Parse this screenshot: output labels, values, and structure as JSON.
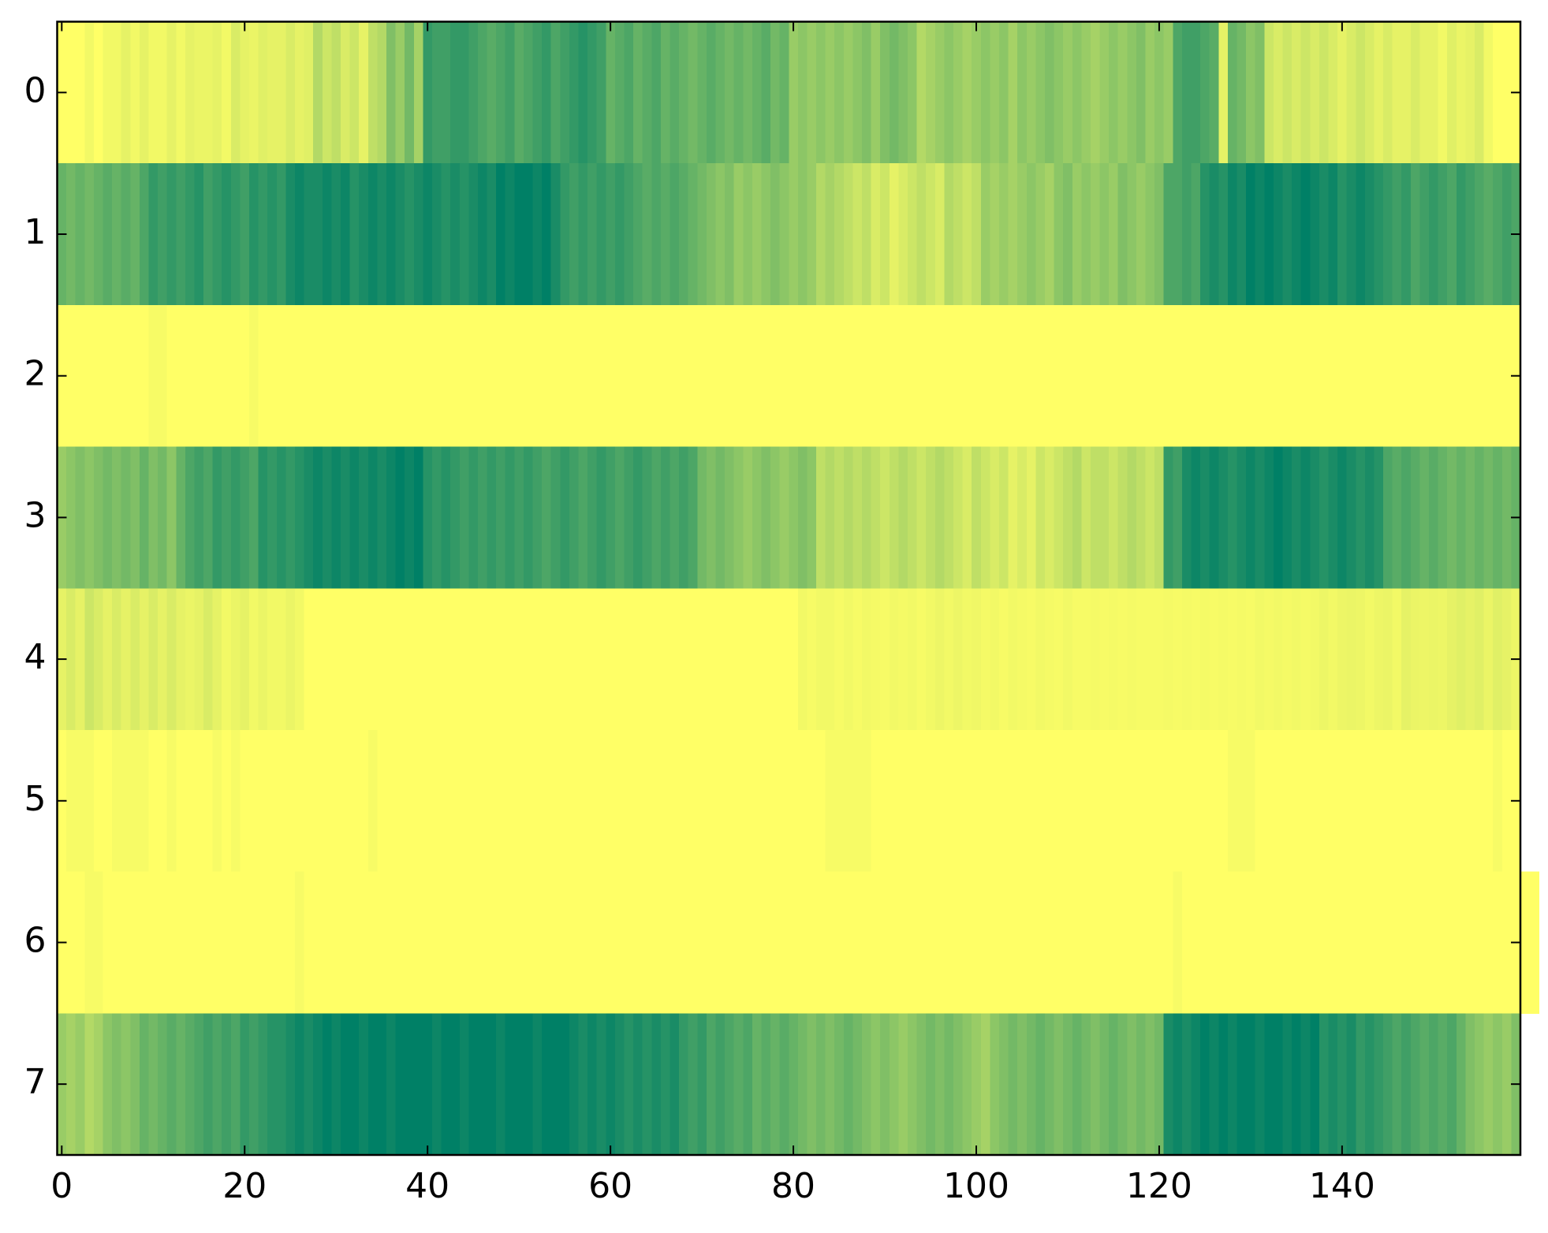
{
  "chart_data": {
    "type": "heatmap",
    "colormap": "summer",
    "clim": [
      0,
      1
    ],
    "xlim": [
      -0.5,
      159.5
    ],
    "ylim": [
      7.5,
      -0.5
    ],
    "xticks": [
      0,
      20,
      40,
      60,
      80,
      100,
      120,
      140
    ],
    "yticks": [
      0,
      1,
      2,
      3,
      4,
      5,
      6,
      7
    ],
    "z": [
      [
        1.0,
        1.0,
        1.0,
        0.95,
        1.0,
        0.95,
        0.95,
        0.9,
        0.95,
        0.9,
        0.95,
        0.95,
        0.9,
        0.95,
        0.9,
        0.92,
        0.92,
        0.9,
        0.95,
        0.85,
        0.9,
        0.92,
        0.88,
        0.9,
        0.9,
        0.85,
        0.9,
        0.88,
        0.7,
        0.8,
        0.75,
        0.85,
        0.8,
        0.9,
        0.75,
        0.7,
        0.5,
        0.6,
        0.45,
        0.65,
        0.2,
        0.25,
        0.25,
        0.2,
        0.2,
        0.25,
        0.3,
        0.35,
        0.3,
        0.25,
        0.35,
        0.3,
        0.25,
        0.2,
        0.3,
        0.25,
        0.2,
        0.15,
        0.2,
        0.25,
        0.4,
        0.35,
        0.3,
        0.4,
        0.35,
        0.3,
        0.4,
        0.35,
        0.4,
        0.45,
        0.4,
        0.35,
        0.4,
        0.45,
        0.4,
        0.45,
        0.4,
        0.35,
        0.45,
        0.4,
        0.6,
        0.55,
        0.6,
        0.55,
        0.6,
        0.55,
        0.6,
        0.55,
        0.5,
        0.6,
        0.5,
        0.45,
        0.5,
        0.55,
        0.7,
        0.65,
        0.6,
        0.55,
        0.6,
        0.65,
        0.6,
        0.55,
        0.6,
        0.55,
        0.65,
        0.55,
        0.6,
        0.55,
        0.5,
        0.55,
        0.6,
        0.55,
        0.6,
        0.65,
        0.6,
        0.55,
        0.6,
        0.55,
        0.5,
        0.6,
        0.55,
        0.6,
        0.3,
        0.25,
        0.25,
        0.3,
        0.35,
        0.9,
        0.4,
        0.45,
        0.55,
        0.5,
        0.8,
        0.85,
        0.8,
        0.85,
        0.8,
        0.85,
        0.8,
        0.85,
        0.9,
        0.85,
        0.8,
        0.85,
        0.9,
        0.85,
        0.9,
        0.9,
        0.85,
        0.9,
        0.9,
        0.95,
        0.88,
        0.92,
        0.9,
        0.85,
        0.95,
        1.0,
        1.0,
        1.0
      ],
      [
        0.4,
        0.45,
        0.4,
        0.45,
        0.4,
        0.35,
        0.4,
        0.35,
        0.4,
        0.3,
        0.2,
        0.25,
        0.2,
        0.25,
        0.2,
        0.15,
        0.25,
        0.2,
        0.15,
        0.2,
        0.25,
        0.15,
        0.2,
        0.15,
        0.2,
        0.1,
        0.05,
        0.1,
        0.1,
        0.05,
        0.1,
        0.05,
        0.15,
        0.1,
        0.05,
        0.1,
        0.05,
        0.1,
        0.15,
        0.1,
        0.05,
        0.1,
        0.15,
        0.1,
        0.15,
        0.1,
        0.05,
        0.1,
        0.0,
        0.05,
        0.0,
        0.0,
        0.05,
        0.0,
        0.1,
        0.2,
        0.25,
        0.2,
        0.25,
        0.2,
        0.25,
        0.2,
        0.25,
        0.3,
        0.35,
        0.3,
        0.35,
        0.3,
        0.35,
        0.4,
        0.45,
        0.5,
        0.55,
        0.5,
        0.6,
        0.55,
        0.6,
        0.55,
        0.5,
        0.55,
        0.6,
        0.55,
        0.6,
        0.7,
        0.65,
        0.7,
        0.75,
        0.8,
        0.75,
        0.85,
        0.8,
        0.9,
        0.85,
        0.8,
        0.75,
        0.8,
        0.85,
        0.7,
        0.75,
        0.8,
        0.75,
        0.6,
        0.65,
        0.6,
        0.65,
        0.6,
        0.55,
        0.6,
        0.65,
        0.55,
        0.5,
        0.6,
        0.55,
        0.6,
        0.55,
        0.6,
        0.5,
        0.55,
        0.6,
        0.55,
        0.5,
        0.3,
        0.3,
        0.25,
        0.3,
        0.15,
        0.1,
        0.15,
        0.05,
        0.1,
        0.0,
        0.05,
        0.0,
        0.05,
        0.1,
        0.05,
        0.0,
        0.05,
        0.1,
        0.05,
        0.15,
        0.1,
        0.05,
        0.1,
        0.15,
        0.2,
        0.25,
        0.2,
        0.3,
        0.25,
        0.2,
        0.25,
        0.3,
        0.2,
        0.25,
        0.3,
        0.35,
        0.3,
        0.25,
        0.3
      ],
      [
        1.0,
        1.0,
        1.0,
        1.0,
        1.0,
        1.0,
        1.0,
        1.0,
        1.0,
        1.0,
        0.97,
        0.97,
        1.0,
        1.0,
        1.0,
        1.0,
        1.0,
        1.0,
        1.0,
        1.0,
        1.0,
        0.97,
        1.0,
        1.0,
        1.0,
        1.0,
        1.0,
        1.0,
        1.0,
        1.0,
        1.0,
        1.0,
        1.0,
        1.0,
        1.0,
        1.0,
        1.0,
        1.0,
        1.0,
        1.0,
        1.0,
        1.0,
        1.0,
        1.0,
        1.0,
        1.0,
        1.0,
        1.0,
        1.0,
        1.0,
        1.0,
        1.0,
        1.0,
        1.0,
        1.0,
        1.0,
        1.0,
        1.0,
        1.0,
        1.0,
        1.0,
        1.0,
        1.0,
        1.0,
        1.0,
        1.0,
        1.0,
        1.0,
        1.0,
        1.0,
        1.0,
        1.0,
        1.0,
        1.0,
        1.0,
        1.0,
        1.0,
        1.0,
        1.0,
        1.0,
        1.0,
        1.0,
        1.0,
        1.0,
        1.0,
        1.0,
        1.0,
        1.0,
        1.0,
        1.0,
        1.0,
        1.0,
        1.0,
        1.0,
        1.0,
        1.0,
        1.0,
        1.0,
        1.0,
        1.0,
        1.0,
        1.0,
        1.0,
        1.0,
        1.0,
        1.0,
        1.0,
        1.0,
        1.0,
        1.0,
        1.0,
        1.0,
        1.0,
        1.0,
        1.0,
        1.0,
        1.0,
        1.0,
        1.0,
        1.0,
        1.0,
        1.0,
        1.0,
        1.0,
        1.0,
        1.0,
        1.0,
        1.0,
        1.0,
        1.0,
        1.0,
        1.0,
        1.0,
        1.0,
        1.0,
        1.0,
        1.0,
        1.0,
        1.0,
        1.0,
        1.0,
        1.0,
        1.0,
        1.0,
        1.0,
        1.0,
        1.0,
        1.0,
        1.0,
        1.0,
        1.0,
        1.0,
        1.0,
        1.0,
        1.0,
        1.0,
        1.0,
        1.0,
        1.0,
        1.0
      ],
      [
        0.6,
        0.55,
        0.5,
        0.55,
        0.5,
        0.45,
        0.5,
        0.45,
        0.5,
        0.4,
        0.5,
        0.45,
        0.55,
        0.4,
        0.3,
        0.25,
        0.3,
        0.2,
        0.25,
        0.2,
        0.25,
        0.3,
        0.15,
        0.2,
        0.15,
        0.2,
        0.15,
        0.1,
        0.05,
        0.1,
        0.05,
        0.1,
        0.05,
        0.1,
        0.05,
        0.1,
        0.05,
        0.0,
        0.05,
        0.0,
        0.15,
        0.2,
        0.15,
        0.2,
        0.25,
        0.2,
        0.25,
        0.2,
        0.25,
        0.2,
        0.25,
        0.2,
        0.25,
        0.3,
        0.25,
        0.2,
        0.25,
        0.3,
        0.25,
        0.2,
        0.25,
        0.3,
        0.25,
        0.2,
        0.25,
        0.3,
        0.25,
        0.3,
        0.25,
        0.3,
        0.45,
        0.5,
        0.45,
        0.5,
        0.55,
        0.6,
        0.55,
        0.5,
        0.55,
        0.6,
        0.55,
        0.5,
        0.55,
        0.75,
        0.7,
        0.75,
        0.7,
        0.75,
        0.7,
        0.75,
        0.8,
        0.75,
        0.7,
        0.75,
        0.8,
        0.75,
        0.7,
        0.75,
        0.8,
        0.85,
        0.75,
        0.8,
        0.85,
        0.8,
        0.9,
        0.85,
        0.9,
        0.8,
        0.85,
        0.8,
        0.75,
        0.7,
        0.8,
        0.75,
        0.75,
        0.8,
        0.75,
        0.7,
        0.75,
        0.8,
        0.75,
        0.2,
        0.25,
        0.1,
        0.05,
        0.1,
        0.05,
        0.1,
        0.15,
        0.1,
        0.05,
        0.1,
        0.05,
        0.0,
        0.05,
        0.1,
        0.05,
        0.1,
        0.15,
        0.1,
        0.05,
        0.1,
        0.15,
        0.1,
        0.15,
        0.3,
        0.35,
        0.3,
        0.35,
        0.4,
        0.35,
        0.4,
        0.45,
        0.4,
        0.45,
        0.4,
        0.45,
        0.4,
        0.45,
        0.4
      ],
      [
        0.9,
        0.85,
        0.9,
        0.8,
        0.85,
        0.9,
        0.85,
        0.9,
        0.85,
        0.9,
        0.85,
        0.9,
        0.85,
        0.9,
        0.92,
        0.9,
        0.85,
        0.9,
        0.95,
        0.92,
        0.9,
        0.95,
        0.92,
        0.95,
        0.95,
        0.92,
        0.95,
        1.0,
        1.0,
        1.0,
        1.0,
        1.0,
        1.0,
        1.0,
        1.0,
        1.0,
        1.0,
        1.0,
        1.0,
        1.0,
        1.0,
        1.0,
        1.0,
        1.0,
        1.0,
        1.0,
        1.0,
        1.0,
        1.0,
        1.0,
        1.0,
        1.0,
        1.0,
        1.0,
        1.0,
        1.0,
        1.0,
        1.0,
        1.0,
        1.0,
        1.0,
        1.0,
        1.0,
        1.0,
        1.0,
        1.0,
        1.0,
        1.0,
        1.0,
        1.0,
        1.0,
        1.0,
        1.0,
        1.0,
        1.0,
        1.0,
        1.0,
        1.0,
        1.0,
        1.0,
        1.0,
        0.95,
        0.97,
        0.95,
        0.95,
        0.97,
        0.95,
        0.97,
        0.95,
        0.96,
        0.97,
        0.95,
        0.96,
        0.95,
        0.97,
        0.95,
        0.93,
        0.95,
        0.93,
        0.95,
        0.94,
        0.96,
        0.95,
        0.97,
        0.95,
        0.96,
        0.97,
        0.95,
        0.96,
        0.97,
        0.95,
        0.97,
        0.97,
        0.96,
        0.97,
        0.96,
        0.97,
        0.96,
        0.97,
        0.97,
        0.97,
        0.96,
        0.97,
        0.96,
        0.97,
        0.96,
        0.97,
        0.96,
        0.97,
        0.96,
        0.97,
        0.95,
        0.96,
        0.95,
        0.96,
        0.95,
        0.96,
        0.95,
        0.93,
        0.95,
        0.93,
        0.92,
        0.93,
        0.95,
        0.93,
        0.92,
        0.95,
        0.9,
        0.92,
        0.93,
        0.92,
        0.93,
        0.9,
        0.88,
        0.9,
        0.88,
        0.92,
        0.88,
        0.9,
        0.93
      ],
      [
        1.0,
        0.97,
        0.97,
        0.97,
        1.0,
        1.0,
        0.97,
        0.97,
        0.97,
        0.97,
        1.0,
        1.0,
        0.97,
        1.0,
        1.0,
        1.0,
        1.0,
        0.97,
        1.0,
        0.97,
        1.0,
        1.0,
        1.0,
        1.0,
        1.0,
        1.0,
        1.0,
        1.0,
        1.0,
        1.0,
        1.0,
        1.0,
        1.0,
        1.0,
        0.97,
        1.0,
        1.0,
        1.0,
        1.0,
        1.0,
        1.0,
        1.0,
        1.0,
        1.0,
        1.0,
        1.0,
        1.0,
        1.0,
        1.0,
        1.0,
        1.0,
        1.0,
        1.0,
        1.0,
        1.0,
        1.0,
        1.0,
        1.0,
        1.0,
        1.0,
        1.0,
        1.0,
        1.0,
        1.0,
        1.0,
        1.0,
        1.0,
        1.0,
        1.0,
        1.0,
        1.0,
        1.0,
        1.0,
        1.0,
        1.0,
        1.0,
        1.0,
        1.0,
        1.0,
        1.0,
        1.0,
        1.0,
        1.0,
        1.0,
        0.97,
        0.97,
        0.97,
        0.97,
        0.97,
        1.0,
        1.0,
        1.0,
        1.0,
        1.0,
        1.0,
        1.0,
        1.0,
        1.0,
        1.0,
        1.0,
        1.0,
        1.0,
        1.0,
        1.0,
        1.0,
        1.0,
        1.0,
        1.0,
        1.0,
        1.0,
        1.0,
        1.0,
        1.0,
        1.0,
        1.0,
        1.0,
        1.0,
        1.0,
        1.0,
        1.0,
        1.0,
        1.0,
        1.0,
        1.0,
        1.0,
        1.0,
        1.0,
        1.0,
        0.97,
        0.97,
        0.97,
        1.0,
        1.0,
        1.0,
        1.0,
        1.0,
        1.0,
        1.0,
        1.0,
        1.0,
        1.0,
        1.0,
        1.0,
        1.0,
        1.0,
        1.0,
        1.0,
        1.0,
        1.0,
        1.0,
        1.0,
        1.0,
        1.0,
        1.0,
        1.0,
        1.0,
        1.0,
        0.97,
        1.0,
        1.0
      ],
      [
        1.0,
        1.0,
        1.0,
        0.97,
        0.97,
        1.0,
        1.0,
        1.0,
        1.0,
        1.0,
        1.0,
        1.0,
        1.0,
        1.0,
        1.0,
        1.0,
        1.0,
        1.0,
        1.0,
        1.0,
        1.0,
        1.0,
        1.0,
        1.0,
        1.0,
        1.0,
        0.97,
        1.0,
        1.0,
        1.0,
        1.0,
        1.0,
        1.0,
        1.0,
        1.0,
        1.0,
        1.0,
        1.0,
        1.0,
        1.0,
        1.0,
        1.0,
        1.0,
        1.0,
        1.0,
        1.0,
        1.0,
        1.0,
        1.0,
        1.0,
        1.0,
        1.0,
        1.0,
        1.0,
        1.0,
        1.0,
        1.0,
        1.0,
        1.0,
        1.0,
        1.0,
        1.0,
        1.0,
        1.0,
        1.0,
        1.0,
        1.0,
        1.0,
        1.0,
        1.0,
        1.0,
        1.0,
        1.0,
        1.0,
        1.0,
        1.0,
        1.0,
        1.0,
        1.0,
        1.0,
        1.0,
        1.0,
        1.0,
        1.0,
        1.0,
        1.0,
        1.0,
        1.0,
        1.0,
        1.0,
        1.0,
        1.0,
        1.0,
        1.0,
        1.0,
        1.0,
        1.0,
        1.0,
        1.0,
        1.0,
        1.0,
        1.0,
        1.0,
        1.0,
        1.0,
        1.0,
        1.0,
        1.0,
        1.0,
        1.0,
        1.0,
        1.0,
        1.0,
        1.0,
        1.0,
        1.0,
        1.0,
        1.0,
        1.0,
        1.0,
        1.0,
        1.0,
        0.97,
        1.0,
        1.0,
        1.0,
        1.0,
        1.0,
        1.0,
        1.0,
        1.0,
        1.0,
        1.0,
        1.0,
        1.0,
        1.0,
        1.0,
        1.0,
        1.0,
        1.0,
        1.0,
        1.0,
        1.0,
        1.0,
        1.0,
        1.0,
        1.0,
        1.0,
        1.0,
        1.0,
        1.0,
        1.0,
        1.0,
        1.0,
        1.0,
        1.0,
        1.0,
        1.0,
        1.0,
        1.0,
        1.0,
        1.0
      ],
      [
        0.6,
        0.65,
        0.6,
        0.7,
        0.65,
        0.55,
        0.5,
        0.55,
        0.5,
        0.4,
        0.45,
        0.4,
        0.35,
        0.4,
        0.35,
        0.3,
        0.25,
        0.3,
        0.25,
        0.3,
        0.2,
        0.25,
        0.2,
        0.15,
        0.15,
        0.1,
        0.05,
        0.1,
        0.05,
        0.0,
        0.05,
        0.0,
        0.0,
        0.05,
        0.0,
        0.0,
        0.05,
        0.0,
        0.0,
        0.0,
        0.0,
        0.05,
        0.0,
        0.0,
        0.05,
        0.0,
        0.0,
        0.0,
        0.05,
        0.0,
        0.0,
        0.0,
        0.05,
        0.0,
        0.0,
        0.0,
        0.05,
        0.1,
        0.05,
        0.1,
        0.05,
        0.1,
        0.15,
        0.1,
        0.15,
        0.1,
        0.15,
        0.1,
        0.2,
        0.25,
        0.2,
        0.3,
        0.25,
        0.3,
        0.35,
        0.3,
        0.4,
        0.35,
        0.4,
        0.35,
        0.4,
        0.45,
        0.5,
        0.45,
        0.5,
        0.45,
        0.4,
        0.45,
        0.5,
        0.55,
        0.5,
        0.55,
        0.6,
        0.55,
        0.5,
        0.45,
        0.5,
        0.45,
        0.5,
        0.55,
        0.6,
        0.65,
        0.55,
        0.5,
        0.45,
        0.5,
        0.45,
        0.4,
        0.45,
        0.5,
        0.45,
        0.4,
        0.45,
        0.5,
        0.45,
        0.4,
        0.45,
        0.5,
        0.45,
        0.5,
        0.45,
        0.1,
        0.05,
        0.1,
        0.05,
        0.0,
        0.05,
        0.0,
        0.05,
        0.0,
        0.0,
        0.05,
        0.0,
        0.0,
        0.05,
        0.0,
        0.05,
        0.0,
        0.15,
        0.1,
        0.15,
        0.1,
        0.2,
        0.15,
        0.2,
        0.25,
        0.3,
        0.25,
        0.3,
        0.35,
        0.3,
        0.35,
        0.3,
        0.4,
        0.5,
        0.55,
        0.6,
        0.55,
        0.6,
        0.5
      ]
    ]
  }
}
